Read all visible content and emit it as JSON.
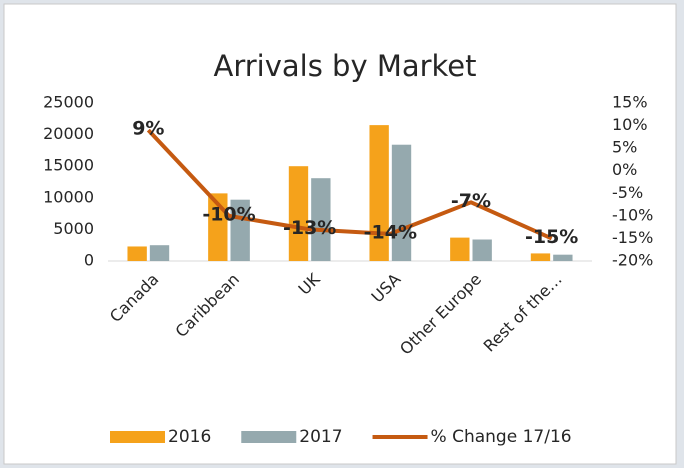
{
  "chart_data": {
    "type": "bar_line",
    "title": "Arrivals by Market",
    "categories": [
      "Canada",
      "Caribbean",
      "UK",
      "USA",
      "Other Europe",
      "Rest of the…"
    ],
    "series": [
      {
        "name": "2016",
        "color": "#f5a21b",
        "values": [
          2300,
          10700,
          15000,
          21500,
          3700,
          1200
        ]
      },
      {
        "name": "2017",
        "color": "#95a9ae",
        "values": [
          2500,
          9700,
          13100,
          18400,
          3400,
          1000
        ]
      },
      {
        "name": "% Change 17/16",
        "color": "#c55a11",
        "axis": "y2",
        "type": "line",
        "values": [
          9,
          -10,
          -13,
          -14,
          -7,
          -15
        ],
        "value_labels": [
          "9%",
          "-10%",
          "-13%",
          "-14%",
          "-7%",
          "-15%"
        ]
      }
    ],
    "ylim": [
      0,
      25000
    ],
    "yticks": [
      0,
      5000,
      10000,
      15000,
      20000,
      25000
    ],
    "y2lim": [
      -20,
      15
    ],
    "y2ticks": [
      {
        "value": -20,
        "label": "-20%"
      },
      {
        "value": -15,
        "label": "-15%"
      },
      {
        "value": -10,
        "label": "-10%"
      },
      {
        "value": -5,
        "label": "-5%"
      },
      {
        "value": 0,
        "label": "0%"
      },
      {
        "value": 5,
        "label": "5%"
      },
      {
        "value": 10,
        "label": "10%"
      },
      {
        "value": 15,
        "label": "15%"
      }
    ],
    "grid": false,
    "legend": "bottom"
  }
}
